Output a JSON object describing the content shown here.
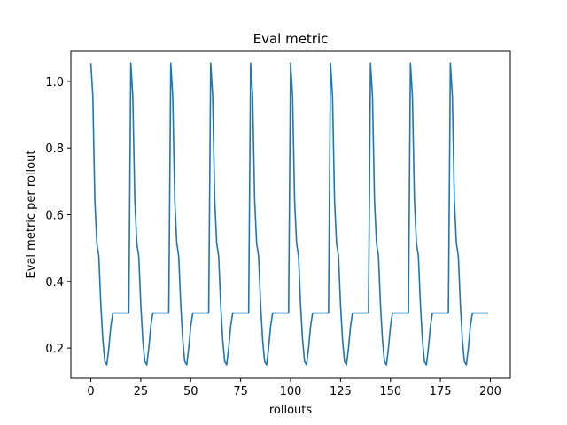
{
  "chart_data": {
    "type": "line",
    "title": "Eval metric",
    "xlabel": "rollouts",
    "ylabel": "Eval metric per rollout",
    "xlim": [
      -10,
      210
    ],
    "ylim": [
      0.11,
      1.09
    ],
    "xticks": [
      0,
      25,
      50,
      75,
      100,
      125,
      150,
      175,
      200
    ],
    "xtick_labels": [
      "0",
      "25",
      "50",
      "75",
      "100",
      "125",
      "150",
      "175",
      "200"
    ],
    "yticks": [
      0.2,
      0.4,
      0.6,
      0.8,
      1.0
    ],
    "ytick_labels": [
      "0.2",
      "0.4",
      "0.6",
      "0.8",
      "1.0"
    ],
    "grid": false,
    "legend": false,
    "series": [
      {
        "color": "#1f77b4",
        "x": [
          0,
          1,
          2,
          3,
          4,
          5,
          6,
          7,
          8,
          9,
          10,
          11,
          12,
          13,
          14,
          15,
          16,
          17,
          18,
          19,
          20,
          21,
          22,
          23,
          24,
          25,
          26,
          27,
          28,
          29,
          30,
          31,
          32,
          33,
          34,
          35,
          36,
          37,
          38,
          39,
          40,
          41,
          42,
          43,
          44,
          45,
          46,
          47,
          48,
          49,
          50,
          51,
          52,
          53,
          54,
          55,
          56,
          57,
          58,
          59,
          60,
          61,
          62,
          63,
          64,
          65,
          66,
          67,
          68,
          69,
          70,
          71,
          72,
          73,
          74,
          75,
          76,
          77,
          78,
          79,
          80,
          81,
          82,
          83,
          84,
          85,
          86,
          87,
          88,
          89,
          90,
          91,
          92,
          93,
          94,
          95,
          96,
          97,
          98,
          99,
          100,
          101,
          102,
          103,
          104,
          105,
          106,
          107,
          108,
          109,
          110,
          111,
          112,
          113,
          114,
          115,
          116,
          117,
          118,
          119,
          120,
          121,
          122,
          123,
          124,
          125,
          126,
          127,
          128,
          129,
          130,
          131,
          132,
          133,
          134,
          135,
          136,
          137,
          138,
          139,
          140,
          141,
          142,
          143,
          144,
          145,
          146,
          147,
          148,
          149,
          150,
          151,
          152,
          153,
          154,
          155,
          156,
          157,
          158,
          159,
          160,
          161,
          162,
          163,
          164,
          165,
          166,
          167,
          168,
          169,
          170,
          171,
          172,
          173,
          174,
          175,
          176,
          177,
          178,
          179,
          180,
          181,
          182,
          183,
          184,
          185,
          186,
          187,
          188,
          189,
          190,
          191,
          192,
          193,
          194,
          195,
          196,
          197,
          198,
          199
        ],
        "y": [
          1.055,
          0.955,
          0.645,
          0.515,
          0.475,
          0.33,
          0.225,
          0.16,
          0.15,
          0.2,
          0.265,
          0.305,
          0.305,
          0.305,
          0.305,
          0.305,
          0.305,
          0.305,
          0.305,
          0.305,
          1.055,
          0.955,
          0.645,
          0.515,
          0.475,
          0.33,
          0.225,
          0.16,
          0.15,
          0.2,
          0.265,
          0.305,
          0.305,
          0.305,
          0.305,
          0.305,
          0.305,
          0.305,
          0.305,
          0.305,
          1.055,
          0.955,
          0.645,
          0.515,
          0.475,
          0.33,
          0.225,
          0.16,
          0.15,
          0.2,
          0.265,
          0.305,
          0.305,
          0.305,
          0.305,
          0.305,
          0.305,
          0.305,
          0.305,
          0.305,
          1.055,
          0.955,
          0.645,
          0.515,
          0.475,
          0.33,
          0.225,
          0.16,
          0.15,
          0.2,
          0.265,
          0.305,
          0.305,
          0.305,
          0.305,
          0.305,
          0.305,
          0.305,
          0.305,
          0.305,
          1.055,
          0.955,
          0.645,
          0.515,
          0.475,
          0.33,
          0.225,
          0.16,
          0.15,
          0.2,
          0.265,
          0.305,
          0.305,
          0.305,
          0.305,
          0.305,
          0.305,
          0.305,
          0.305,
          0.305,
          1.055,
          0.955,
          0.645,
          0.515,
          0.475,
          0.33,
          0.225,
          0.16,
          0.15,
          0.2,
          0.265,
          0.305,
          0.305,
          0.305,
          0.305,
          0.305,
          0.305,
          0.305,
          0.305,
          0.305,
          1.055,
          0.955,
          0.645,
          0.515,
          0.475,
          0.33,
          0.225,
          0.16,
          0.15,
          0.2,
          0.265,
          0.305,
          0.305,
          0.305,
          0.305,
          0.305,
          0.305,
          0.305,
          0.305,
          0.305,
          1.055,
          0.955,
          0.645,
          0.515,
          0.475,
          0.33,
          0.225,
          0.16,
          0.15,
          0.2,
          0.265,
          0.305,
          0.305,
          0.305,
          0.305,
          0.305,
          0.305,
          0.305,
          0.305,
          0.305,
          1.055,
          0.955,
          0.645,
          0.515,
          0.475,
          0.33,
          0.225,
          0.16,
          0.15,
          0.2,
          0.265,
          0.305,
          0.305,
          0.305,
          0.305,
          0.305,
          0.305,
          0.305,
          0.305,
          0.305,
          1.055,
          0.955,
          0.645,
          0.515,
          0.475,
          0.33,
          0.225,
          0.16,
          0.15,
          0.2,
          0.265,
          0.305,
          0.305,
          0.305,
          0.305,
          0.305,
          0.305,
          0.305,
          0.305,
          0.305
        ]
      }
    ]
  }
}
